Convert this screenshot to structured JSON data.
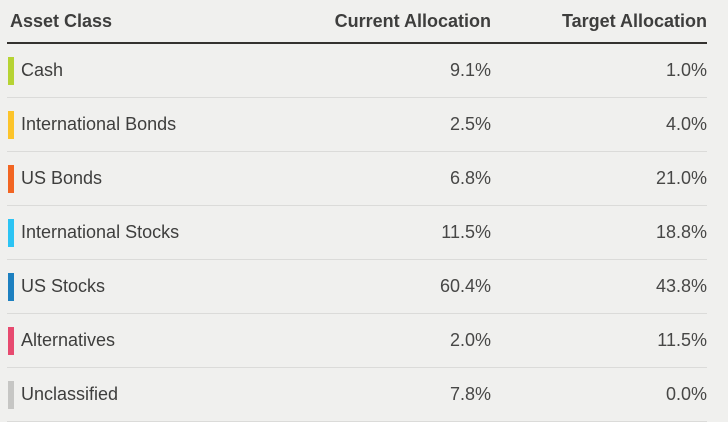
{
  "table": {
    "columns": [
      {
        "label": "Asset Class"
      },
      {
        "label": "Current Allocation"
      },
      {
        "label": "Target Allocation"
      }
    ],
    "rows": [
      {
        "asset_class": "Cash",
        "color": "#b6d333",
        "current": "9.1%",
        "target": "1.0%"
      },
      {
        "asset_class": "International Bonds",
        "color": "#fcc42a",
        "current": "2.5%",
        "target": "4.0%"
      },
      {
        "asset_class": "US Bonds",
        "color": "#f26522",
        "current": "6.8%",
        "target": "21.0%"
      },
      {
        "asset_class": "International Stocks",
        "color": "#2cc4f4",
        "current": "11.5%",
        "target": "18.8%"
      },
      {
        "asset_class": "US Stocks",
        "color": "#1d80c0",
        "current": "60.4%",
        "target": "43.8%"
      },
      {
        "asset_class": "Alternatives",
        "color": "#e74a6f",
        "current": "2.0%",
        "target": "11.5%"
      },
      {
        "asset_class": "Unclassified",
        "color": "#c6c6c4",
        "current": "7.8%",
        "target": "0.0%"
      }
    ],
    "style": {
      "background": "#f0f0ee",
      "header_rule": "#34322f",
      "row_separator": "#dbdbd9",
      "text": "#3e3e3d"
    }
  }
}
